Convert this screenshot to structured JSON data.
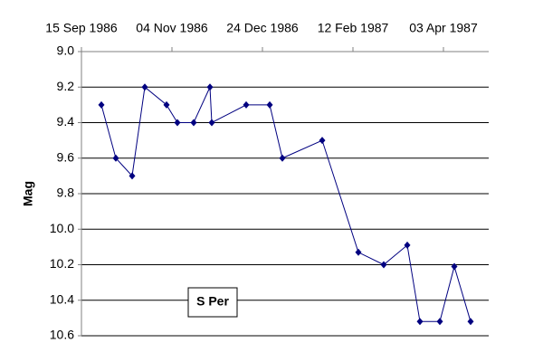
{
  "chart_data": {
    "type": "line",
    "y_label": "Mag",
    "x": [
      "1986-09-26",
      "1986-10-04",
      "1986-10-13",
      "1986-10-20",
      "1986-11-01",
      "1986-11-07",
      "1986-11-16",
      "1986-11-25",
      "1986-11-26",
      "1986-12-15",
      "1986-12-28",
      "1987-01-04",
      "1987-01-26",
      "1987-02-15",
      "1987-03-01",
      "1987-03-14",
      "1987-03-21",
      "1987-04-01",
      "1987-04-09",
      "1987-04-18"
    ],
    "series": [
      {
        "name": "S Per",
        "color": "#000080",
        "values": [
          9.3,
          9.6,
          9.7,
          9.2,
          9.3,
          9.4,
          9.4,
          9.2,
          9.4,
          9.3,
          9.3,
          9.6,
          9.5,
          10.13,
          10.2,
          10.09,
          10.52,
          10.52,
          10.21,
          10.52
        ]
      }
    ],
    "xlim": [
      "1986-09-15",
      "1987-04-28"
    ],
    "xticks": [
      {
        "value": "1986-09-15",
        "label": "15 Sep 1986"
      },
      {
        "value": "1986-11-04",
        "label": "04 Nov 1986"
      },
      {
        "value": "1986-12-24",
        "label": "24 Dec 1986"
      },
      {
        "value": "1987-02-12",
        "label": "12 Feb 1987"
      },
      {
        "value": "1987-04-03",
        "label": "03 Apr 1987"
      }
    ],
    "x_axis_position": "top",
    "ylim": [
      9.0,
      10.6
    ],
    "y_inverted": true,
    "yticks": [
      {
        "value": 9,
        "label": "9.0"
      },
      9.2,
      9.4,
      9.6,
      9.8,
      {
        "value": 10,
        "label": "10.0"
      },
      10.2,
      10.4,
      10.6
    ],
    "grid": true
  }
}
